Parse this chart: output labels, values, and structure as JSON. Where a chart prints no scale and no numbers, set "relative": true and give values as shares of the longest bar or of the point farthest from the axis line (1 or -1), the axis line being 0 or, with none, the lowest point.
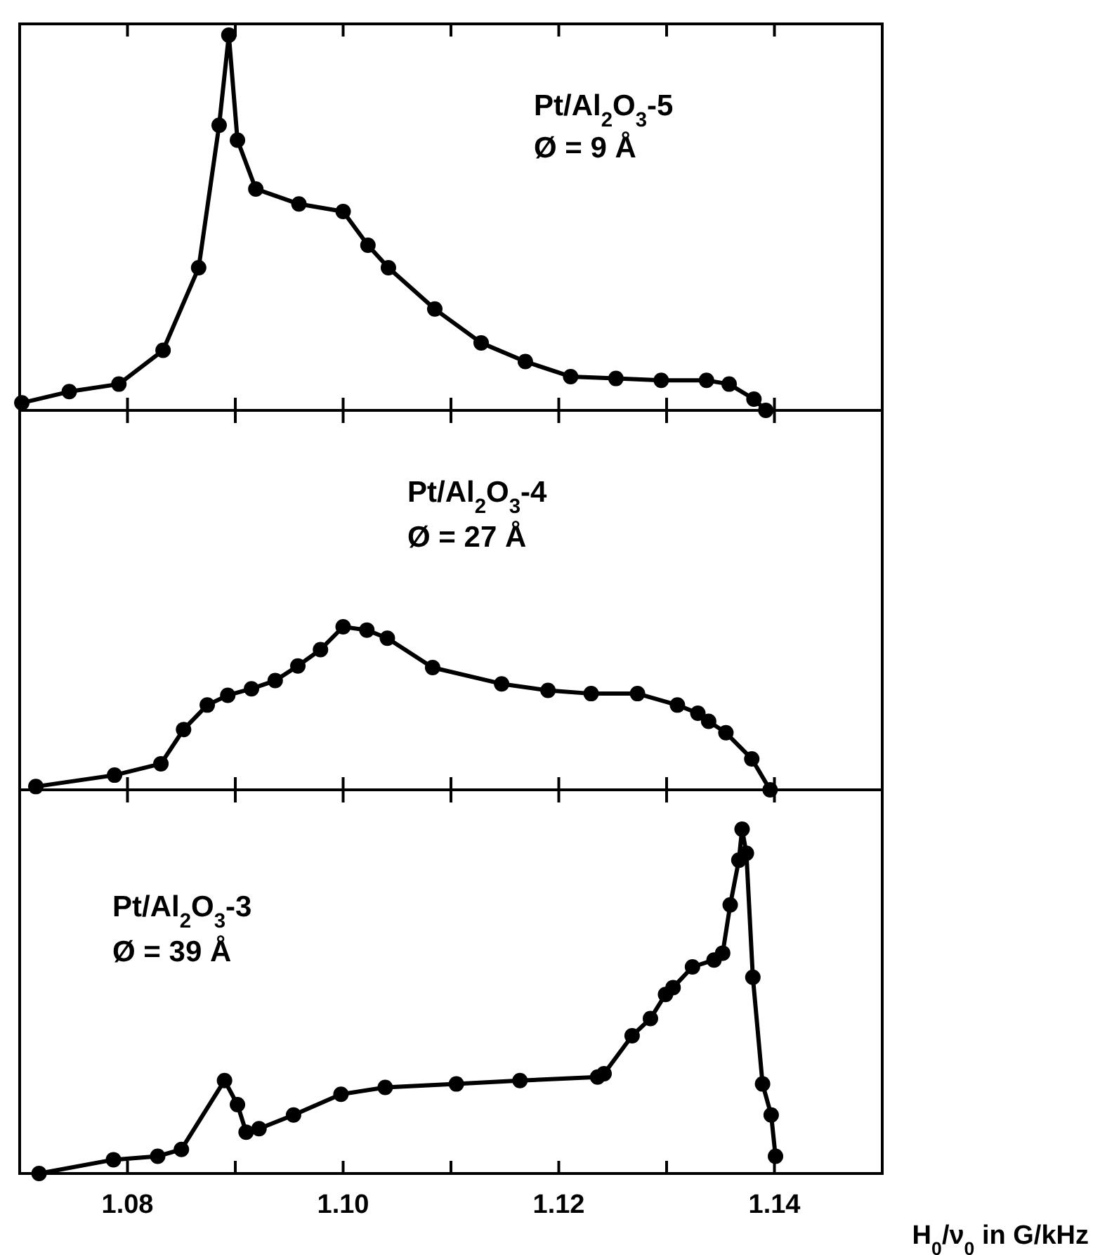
{
  "chart_data": [
    {
      "type": "line",
      "relative": true,
      "xlim": [
        1.07,
        1.15
      ],
      "xticks": [
        {
          "value": 1.08,
          "label": null
        },
        {
          "value": 1.09,
          "label": null
        },
        {
          "value": 1.1,
          "label": null
        },
        {
          "value": 1.11,
          "label": null
        },
        {
          "value": 1.12,
          "label": null
        },
        {
          "value": 1.13,
          "label": null
        },
        {
          "value": 1.14,
          "label": null
        }
      ],
      "tick_labels": false,
      "marker": "circle",
      "line_style": "solid",
      "grid": false,
      "annotations": [
        "Pt/Al$_{2}$O$_{3}$-5",
        "Ø = 9 Å"
      ],
      "series": [
        {
          "color": "#000000",
          "x": [
            1.0702,
            1.0746,
            1.0792,
            1.0833,
            1.0866,
            1.0885,
            1.0894,
            1.0902,
            1.0919,
            1.0959,
            1.1,
            1.1023,
            1.1042,
            1.1085,
            1.1128,
            1.1169,
            1.1211,
            1.1253,
            1.1295,
            1.1337,
            1.1358,
            1.1381,
            1.1392
          ],
          "values": [
            0.02,
            0.05,
            0.07,
            0.16,
            0.38,
            0.76,
            1,
            0.72,
            0.59,
            0.55,
            0.53,
            0.44,
            0.38,
            0.27,
            0.18,
            0.13,
            0.09,
            0.085,
            0.08,
            0.08,
            0.07,
            0.03,
            0
          ]
        }
      ]
    },
    {
      "type": "line",
      "relative": true,
      "xlim": [
        1.07,
        1.15
      ],
      "xticks": [
        {
          "value": 1.08,
          "label": null
        },
        {
          "value": 1.09,
          "label": null
        },
        {
          "value": 1.1,
          "label": null
        },
        {
          "value": 1.11,
          "label": null
        },
        {
          "value": 1.12,
          "label": null
        },
        {
          "value": 1.13,
          "label": null
        },
        {
          "value": 1.14,
          "label": null
        }
      ],
      "tick_labels": false,
      "marker": "circle",
      "line_style": "solid",
      "grid": false,
      "annotations": [
        "Pt/Al$_{2}$O$_{3}$-4",
        "Ø = 27 Å"
      ],
      "series": [
        {
          "color": "#000000",
          "x": [
            1.0715,
            1.0788,
            1.0831,
            1.0852,
            1.0874,
            1.0893,
            1.0915,
            1.0937,
            1.0958,
            1.0979,
            1.1,
            1.1022,
            1.1041,
            1.1083,
            1.1147,
            1.119,
            1.123,
            1.1273,
            1.131,
            1.1329,
            1.1339,
            1.1355,
            1.1379,
            1.1396
          ],
          "values": [
            0.02,
            0.09,
            0.16,
            0.37,
            0.52,
            0.58,
            0.62,
            0.67,
            0.76,
            0.86,
            1,
            0.98,
            0.93,
            0.75,
            0.65,
            0.61,
            0.59,
            0.59,
            0.52,
            0.47,
            0.42,
            0.35,
            0.19,
            0
          ]
        }
      ]
    },
    {
      "type": "line",
      "relative": true,
      "xlim": [
        1.07,
        1.15
      ],
      "xticks": [
        1.08,
        {
          "value": 1.09,
          "label": null
        },
        {
          "value": 1.1,
          "label": "1.10"
        },
        {
          "value": 1.11,
          "label": null
        },
        1.12,
        {
          "value": 1.13,
          "label": null
        },
        1.14
      ],
      "tick_labels": "x",
      "marker": "circle",
      "line_style": "solid",
      "grid": false,
      "xlabel": "H$_{0}$/ν$_{0}$ in G/kHz",
      "annotations": [
        "Pt/Al$_{2}$O$_{3}$-3",
        "Ø = 39 Å"
      ],
      "series": [
        {
          "color": "#000000",
          "x": [
            1.0718,
            1.0787,
            1.0828,
            1.085,
            1.089,
            1.0902,
            1.091,
            1.0922,
            1.0954,
            1.0998,
            1.1039,
            1.1105,
            1.1164,
            1.1236,
            1.1242,
            1.1268,
            1.1285,
            1.1299,
            1.1306,
            1.1324,
            1.1344,
            1.1352,
            1.1359,
            1.1367,
            1.137,
            1.1374,
            1.138,
            1.1389,
            1.1397,
            1.1401
          ],
          "values": [
            0,
            0.04,
            0.05,
            0.07,
            0.27,
            0.2,
            0.12,
            0.13,
            0.17,
            0.23,
            0.25,
            0.26,
            0.27,
            0.28,
            0.29,
            0.4,
            0.45,
            0.52,
            0.54,
            0.6,
            0.62,
            0.64,
            0.78,
            0.91,
            1,
            0.93,
            0.57,
            0.26,
            0.17,
            0.05
          ]
        }
      ]
    }
  ]
}
